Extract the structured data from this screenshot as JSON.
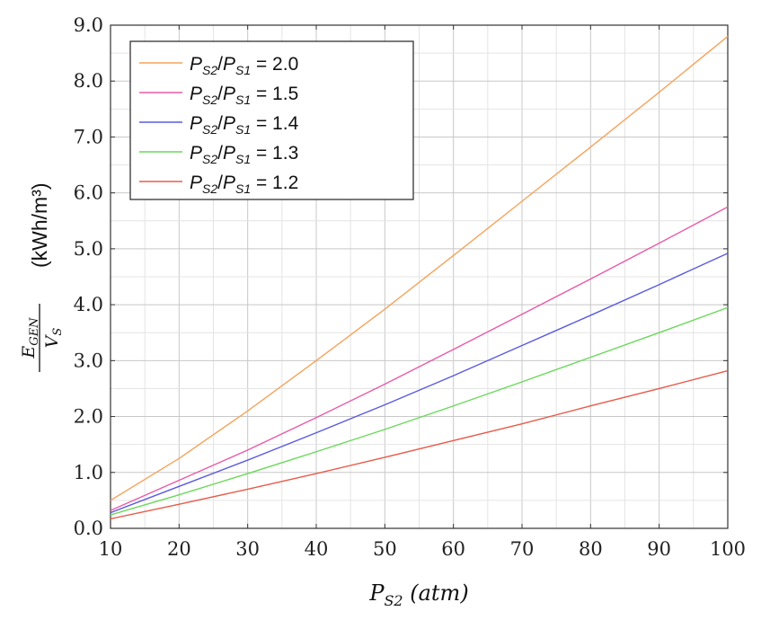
{
  "chart_data": {
    "type": "line",
    "xlabel": {
      "main": "P",
      "sub": "S2",
      "unit": " (atm)"
    },
    "ylabel": {
      "numerator": {
        "main": "E",
        "sub": "GEN"
      },
      "denominator": {
        "main": "V",
        "sub": "S"
      },
      "unit": "(kWh/m³)"
    },
    "xlim": [
      10,
      100
    ],
    "ylim": [
      0,
      9
    ],
    "xticks": [
      "10",
      "20",
      "30",
      "40",
      "50",
      "60",
      "70",
      "80",
      "90",
      "100"
    ],
    "yticks": [
      "0.0",
      "1.0",
      "2.0",
      "3.0",
      "4.0",
      "5.0",
      "6.0",
      "7.0",
      "8.0",
      "9.0"
    ],
    "grid": true,
    "legend_position": "top-left",
    "x": [
      10,
      20,
      30,
      40,
      50,
      60,
      70,
      80,
      90,
      100
    ],
    "series": [
      {
        "name": "= 2.0",
        "color": "#f5a35a",
        "values": [
          0.5,
          1.25,
          2.1,
          3.0,
          3.92,
          4.88,
          5.85,
          6.82,
          7.8,
          8.8
        ]
      },
      {
        "name": "= 1.5",
        "color": "#e85aa8",
        "values": [
          0.32,
          0.86,
          1.4,
          1.98,
          2.58,
          3.2,
          3.83,
          4.46,
          5.1,
          5.75
        ]
      },
      {
        "name": "= 1.4",
        "color": "#5a5ae0",
        "values": [
          0.28,
          0.75,
          1.22,
          1.71,
          2.21,
          2.73,
          3.27,
          3.81,
          4.36,
          4.92
        ]
      },
      {
        "name": "= 1.3",
        "color": "#6ad85a",
        "values": [
          0.24,
          0.6,
          0.98,
          1.37,
          1.77,
          2.19,
          2.62,
          3.06,
          3.5,
          3.95
        ]
      },
      {
        "name": "= 1.2",
        "color": "#e85a4a",
        "values": [
          0.17,
          0.43,
          0.7,
          0.98,
          1.27,
          1.57,
          1.87,
          2.19,
          2.5,
          2.82
        ]
      }
    ],
    "legend_label": {
      "num": "P",
      "num_sub": "S2",
      "den": "P",
      "den_sub": "S1"
    }
  }
}
